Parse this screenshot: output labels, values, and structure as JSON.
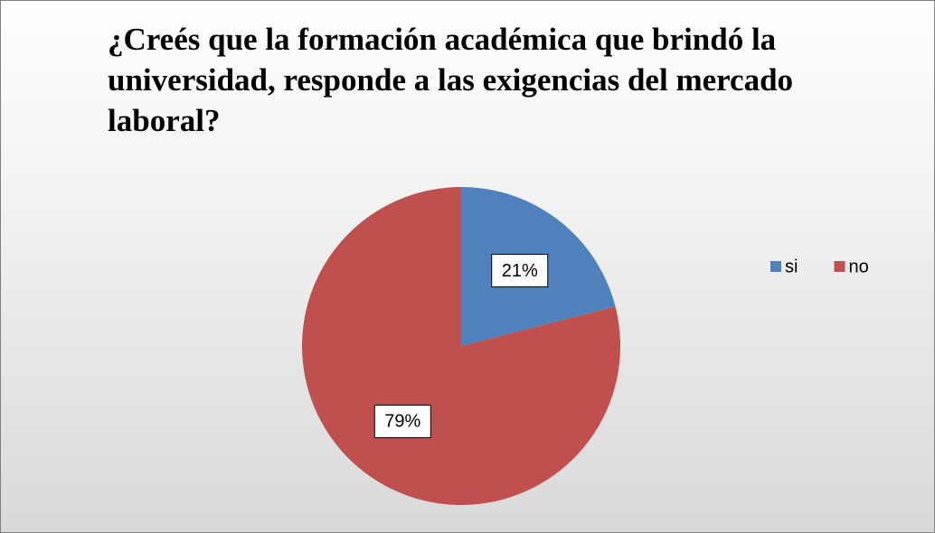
{
  "chart_data": {
    "type": "pie",
    "title": "¿Creés que la formación académica que brindó la universidad, responde a las exigencias del mercado laboral?",
    "categories": [
      "si",
      "no"
    ],
    "values": [
      21,
      79
    ],
    "value_labels": [
      "21%",
      "79%"
    ],
    "colors": [
      "#4f81bd",
      "#c0504d"
    ],
    "legend": "right"
  }
}
